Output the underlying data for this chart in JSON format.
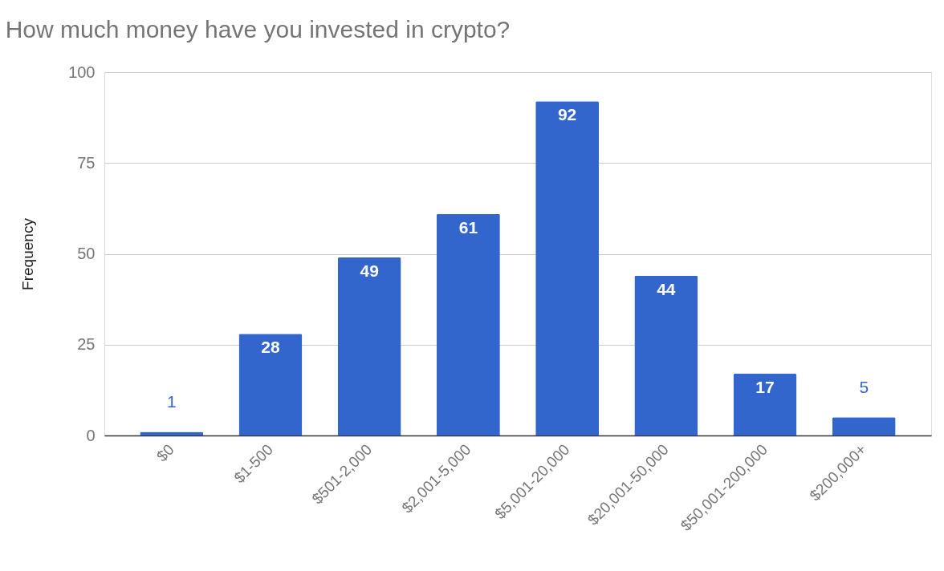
{
  "chart_data": {
    "type": "bar",
    "title": "How much money have you invested in crypto?",
    "ylabel": "Frequency",
    "categories": [
      "$0",
      "$1-500",
      "$501-2,000",
      "$2,001-5,000",
      "$5,001-20,000",
      "$20,001-50,000",
      "$50,001-200,000",
      "$200,000+"
    ],
    "values": [
      1,
      28,
      49,
      61,
      92,
      44,
      17,
      5
    ],
    "color": "#3366cc",
    "ylim": [
      0,
      100
    ],
    "yticks": [
      0,
      25,
      50,
      75,
      100
    ],
    "grid": "y",
    "data_labels": true
  }
}
